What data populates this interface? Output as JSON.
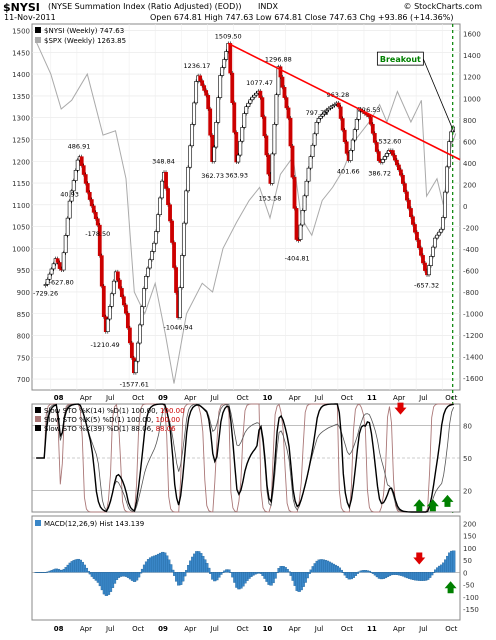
{
  "header": {
    "symbol": "$NYSI",
    "name": "(NYSE Summation Index (Ratio Adjusted) (EOD))",
    "exchange": "INDX",
    "copyright": "© StockCharts.com",
    "date": "11-Nov-2011",
    "ohlc": "Open 674.81  High 747.63  Low 674.81  Close 747.63  Chg +93.86 (+14.36%)",
    "chg_color": "#008000"
  },
  "chart_data": [
    {
      "type": "line",
      "panel": "price",
      "legend": [
        {
          "name": "$NYSI (Weekly) 747.63",
          "color": "#000000"
        },
        {
          "name": "$SPX (Weekly) 1263.85",
          "color": "#aaaaaa"
        }
      ],
      "left_axis": {
        "ticks": [
          700,
          750,
          800,
          850,
          900,
          950,
          1000,
          1050,
          1100,
          1150,
          1200,
          1250,
          1300,
          1350,
          1400,
          1450,
          1500
        ],
        "range": [
          675,
          1515
        ]
      },
      "right_axis": {
        "ticks": [
          -1600,
          -1400,
          -1200,
          -1000,
          -800,
          -600,
          -400,
          -200,
          0,
          200,
          400,
          600,
          800,
          1000,
          1200,
          1400,
          1600
        ],
        "range": [
          -1710,
          1690
        ]
      },
      "x_labels": [
        "08",
        "Apr",
        "Jul",
        "Oct",
        "09",
        "Apr",
        "Jul",
        "Oct",
        "10",
        "Apr",
        "Jul",
        "Oct",
        "11",
        "Apr",
        "Jul",
        "Oct"
      ],
      "x_range": [
        2007.82,
        2011.92
      ],
      "nysi_points": [
        [
          2007.95,
          -729.26
        ],
        [
          2008.05,
          -480
        ],
        [
          2008.1,
          -627.8
        ],
        [
          2008.18,
          40.93
        ],
        [
          2008.27,
          486.91
        ],
        [
          2008.36,
          100
        ],
        [
          2008.45,
          -178.5
        ],
        [
          2008.52,
          -1210.49
        ],
        [
          2008.62,
          -600
        ],
        [
          2008.72,
          -1000
        ],
        [
          2008.8,
          -1577.61
        ],
        [
          2008.9,
          -700
        ],
        [
          2009.0,
          -300
        ],
        [
          2009.08,
          348.84
        ],
        [
          2009.15,
          -200
        ],
        [
          2009.22,
          -1046.94
        ],
        [
          2009.3,
          200
        ],
        [
          2009.4,
          1236.17
        ],
        [
          2009.5,
          1000
        ],
        [
          2009.55,
          362.73
        ],
        [
          2009.62,
          1200
        ],
        [
          2009.7,
          1509.5
        ],
        [
          2009.78,
          363.93
        ],
        [
          2009.86,
          900
        ],
        [
          2009.92,
          1000
        ],
        [
          2010.0,
          1077.47
        ],
        [
          2010.1,
          153.58
        ],
        [
          2010.18,
          1296.88
        ],
        [
          2010.28,
          800
        ],
        [
          2010.36,
          -404.81
        ],
        [
          2010.46,
          300
        ],
        [
          2010.55,
          797.76
        ],
        [
          2010.65,
          900
        ],
        [
          2010.75,
          963.28
        ],
        [
          2010.85,
          401.66
        ],
        [
          2010.95,
          900
        ],
        [
          2011.05,
          826.53
        ],
        [
          2011.15,
          386.72
        ],
        [
          2011.25,
          532.6
        ],
        [
          2011.35,
          300
        ],
        [
          2011.45,
          -100
        ],
        [
          2011.53,
          -400
        ],
        [
          2011.6,
          -657.32
        ],
        [
          2011.68,
          -300
        ],
        [
          2011.75,
          -200
        ],
        [
          2011.82,
          654.0
        ],
        [
          2011.86,
          747.63
        ]
      ],
      "nysi_labels": [
        {
          "x": 2007.95,
          "value": -729.26,
          "text": "-729.26"
        },
        {
          "x": 2008.1,
          "value": -627.8,
          "text": "-627.80"
        },
        {
          "x": 2008.18,
          "value": 40.93,
          "text": "40.93"
        },
        {
          "x": 2008.27,
          "value": 486.91,
          "text": "486.91"
        },
        {
          "x": 2008.45,
          "value": -178.5,
          "text": "-178.50"
        },
        {
          "x": 2008.52,
          "value": -1210.49,
          "text": "-1210.49"
        },
        {
          "x": 2008.8,
          "value": -1577.61,
          "text": "-1577.61"
        },
        {
          "x": 2009.08,
          "value": 348.84,
          "text": "348.84"
        },
        {
          "x": 2009.22,
          "value": -1046.94,
          "text": "-1046.94"
        },
        {
          "x": 2009.4,
          "value": 1236.17,
          "text": "1236.17"
        },
        {
          "x": 2009.55,
          "value": 362.73,
          "text": "362.73"
        },
        {
          "x": 2009.7,
          "value": 1509.5,
          "text": "1509.50"
        },
        {
          "x": 2009.78,
          "value": 363.93,
          "text": "363.93"
        },
        {
          "x": 2010.0,
          "value": 1077.47,
          "text": "1077.47"
        },
        {
          "x": 2010.1,
          "value": 153.58,
          "text": "153.58"
        },
        {
          "x": 2010.18,
          "value": 1296.88,
          "text": "1296.88"
        },
        {
          "x": 2010.36,
          "value": -404.81,
          "text": "-404.81"
        },
        {
          "x": 2010.55,
          "value": 797.76,
          "text": "797.76"
        },
        {
          "x": 2010.75,
          "value": 963.28,
          "text": "963.28"
        },
        {
          "x": 2010.85,
          "value": 401.66,
          "text": "401.66"
        },
        {
          "x": 2011.05,
          "value": 826.53,
          "text": "826.53"
        },
        {
          "x": 2011.15,
          "value": 386.72,
          "text": "386.72"
        },
        {
          "x": 2011.25,
          "value": 532.6,
          "text": "532.60"
        },
        {
          "x": 2011.6,
          "value": -657.32,
          "text": "-657.32"
        }
      ],
      "spx_points": [
        [
          2007.85,
          1480
        ],
        [
          2008.0,
          1400
        ],
        [
          2008.1,
          1320
        ],
        [
          2008.2,
          1340
        ],
        [
          2008.35,
          1400
        ],
        [
          2008.5,
          1260
        ],
        [
          2008.62,
          1270
        ],
        [
          2008.72,
          1160
        ],
        [
          2008.8,
          900
        ],
        [
          2008.9,
          850
        ],
        [
          2009.0,
          920
        ],
        [
          2009.1,
          800
        ],
        [
          2009.18,
          690
        ],
        [
          2009.3,
          850
        ],
        [
          2009.45,
          920
        ],
        [
          2009.55,
          900
        ],
        [
          2009.65,
          1000
        ],
        [
          2009.78,
          1060
        ],
        [
          2009.9,
          1110
        ],
        [
          2010.0,
          1140
        ],
        [
          2010.1,
          1070
        ],
        [
          2010.2,
          1170
        ],
        [
          2010.32,
          1210
        ],
        [
          2010.4,
          1070
        ],
        [
          2010.5,
          1030
        ],
        [
          2010.6,
          1110
        ],
        [
          2010.7,
          1140
        ],
        [
          2010.8,
          1180
        ],
        [
          2010.92,
          1250
        ],
        [
          2011.05,
          1290
        ],
        [
          2011.15,
          1330
        ],
        [
          2011.22,
          1290
        ],
        [
          2011.32,
          1360
        ],
        [
          2011.45,
          1290
        ],
        [
          2011.55,
          1340
        ],
        [
          2011.6,
          1120
        ],
        [
          2011.7,
          1160
        ],
        [
          2011.76,
          1100
        ],
        [
          2011.83,
          1230
        ],
        [
          2011.88,
          1264
        ]
      ],
      "trendline": {
        "from": [
          2009.7,
          1509.5
        ],
        "to": [
          2011.92,
          430
        ],
        "color": "#ff0000"
      },
      "annotation": {
        "text": "Breakout",
        "color": "#008000"
      }
    },
    {
      "type": "line",
      "panel": "stochastics",
      "legend": [
        {
          "name": "Slow STO %K(14) %D(1) 100.00, ",
          "value": "100.00",
          "color": "#000000"
        },
        {
          "name": "Slow STO %K(5) %D(1) 100.00, ",
          "value": "100.00",
          "color": "#aa7777"
        },
        {
          "name": "Slow STO %K(39) %D(1) 88.06, ",
          "value": "88.06",
          "color": "#000000"
        }
      ],
      "y_ticks": [
        20,
        50,
        80
      ],
      "range": [
        0,
        100
      ],
      "reference_lines": [
        20,
        50,
        80
      ]
    },
    {
      "type": "bar",
      "panel": "macd",
      "legend": {
        "name": "MACD(12,26,9) Hist 143.139",
        "color": "#3a87c8"
      },
      "y_ticks": [
        -150,
        -100,
        -50,
        0,
        50,
        100,
        150,
        200
      ],
      "range": [
        -195,
        230
      ],
      "x_labels": [
        "08",
        "Apr",
        "Jul",
        "Oct",
        "09",
        "Apr",
        "Jul",
        "Oct",
        "10",
        "Apr",
        "Jul",
        "Oct",
        "11",
        "Apr",
        "Jul",
        "Oct"
      ]
    }
  ]
}
